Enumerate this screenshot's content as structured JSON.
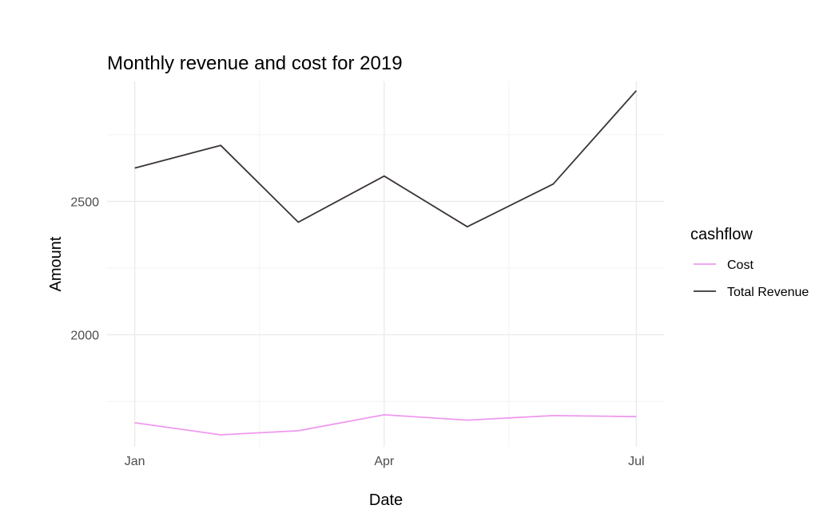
{
  "chart_data": {
    "type": "line",
    "title": "Monthly revenue and cost for 2019",
    "xlabel": "Date",
    "ylabel": "Amount",
    "x": [
      "2019-01-01",
      "2019-02-01",
      "2019-03-01",
      "2019-04-01",
      "2019-05-01",
      "2019-06-01",
      "2019-07-01"
    ],
    "x_tick_labels": [
      "Jan",
      "Apr",
      "Jul"
    ],
    "x_tick_dates": [
      "2019-01-01",
      "2019-04-01",
      "2019-07-01"
    ],
    "x_minor_dates": [
      "2019-02-15",
      "2019-05-16"
    ],
    "xlim": [
      "2018-12-22",
      "2019-07-11"
    ],
    "y_ticks": [
      2000,
      2500
    ],
    "y_minor_ticks": [
      1750,
      2250,
      2750
    ],
    "ylim": [
      1580,
      2950
    ],
    "grid": true,
    "legend": {
      "title": "cashflow",
      "position": "right"
    },
    "series": [
      {
        "name": "Cost",
        "color": "#ee99ee",
        "values": [
          1670,
          1625,
          1640,
          1700,
          1680,
          1697,
          1693
        ]
      },
      {
        "name": "Total Revenue",
        "color": "#3a3338",
        "values": [
          2625,
          2710,
          2422,
          2595,
          2405,
          2565,
          2915
        ]
      }
    ]
  }
}
